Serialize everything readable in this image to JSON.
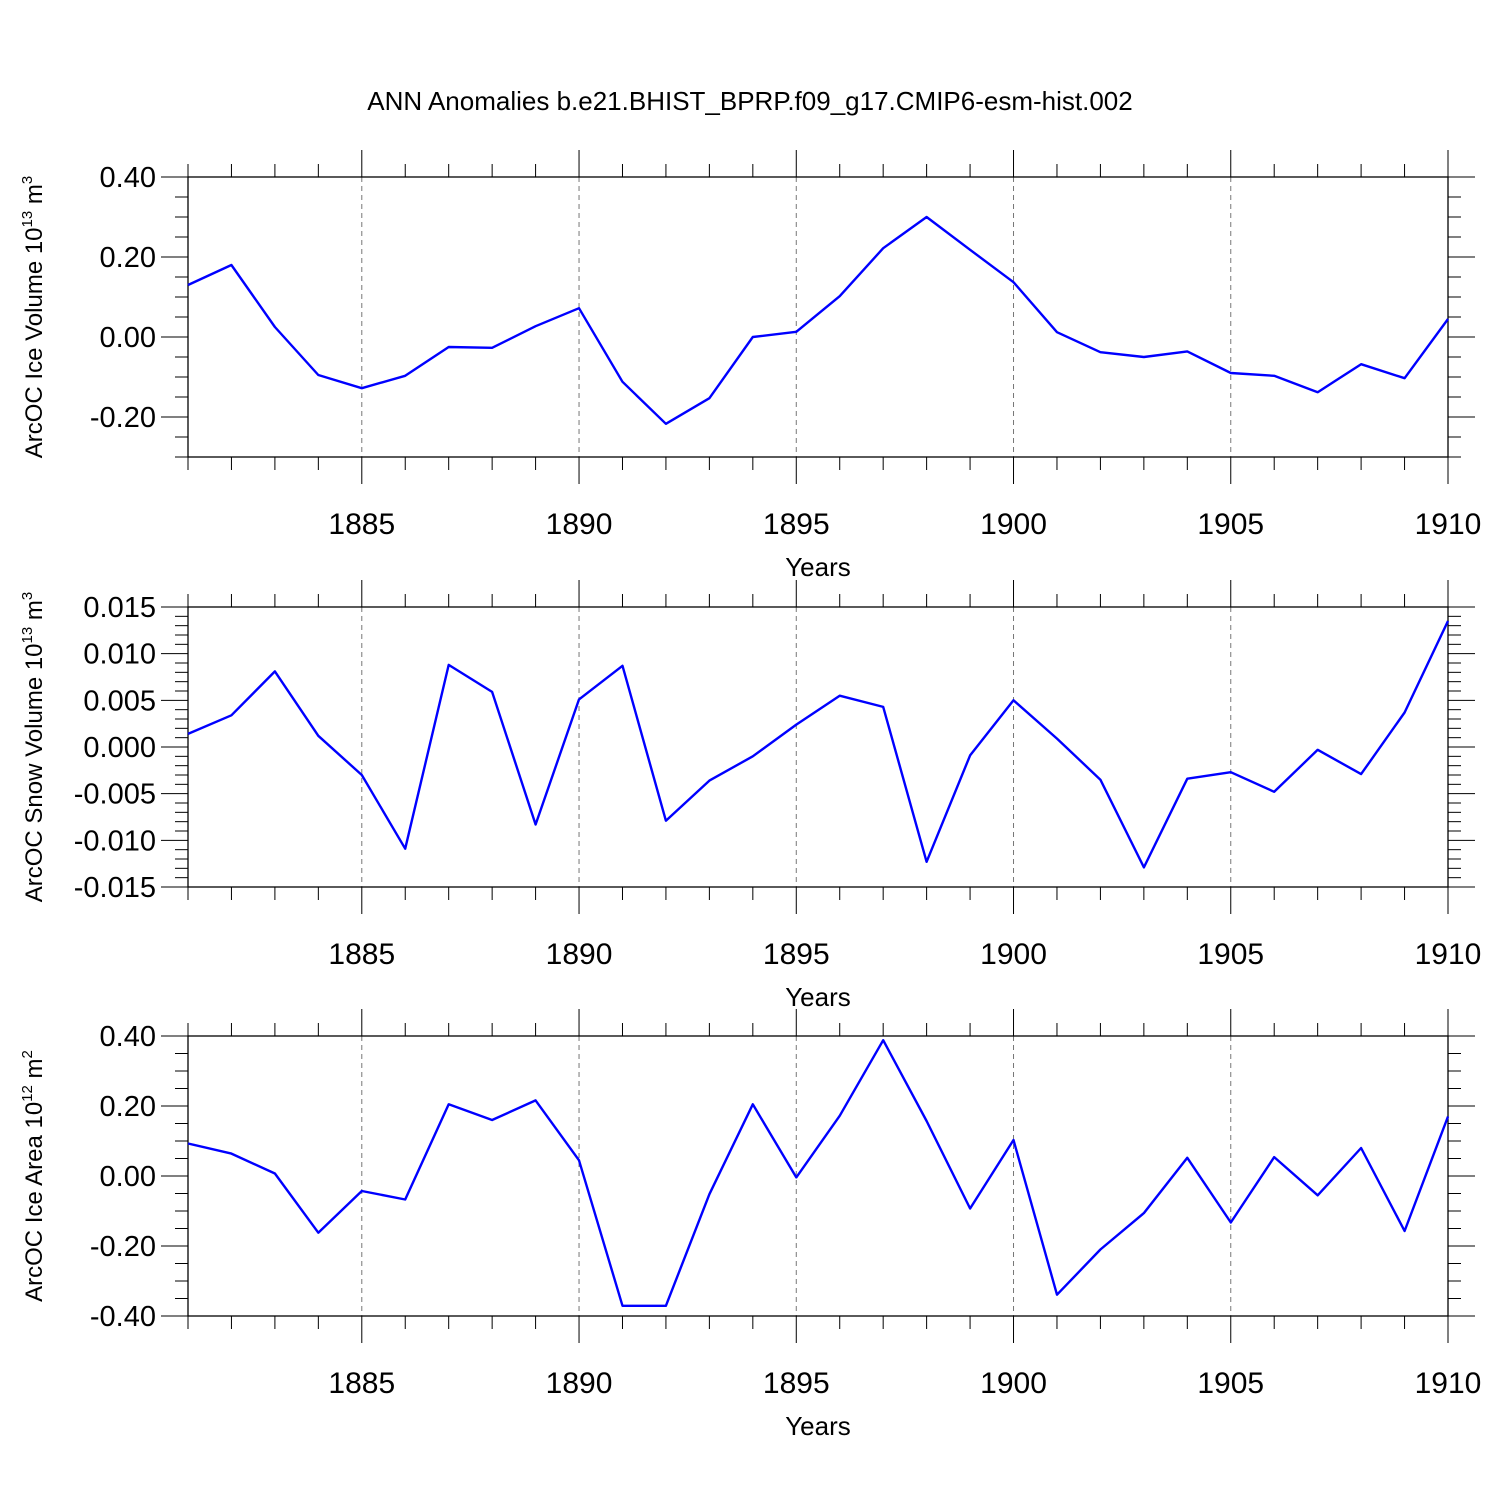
{
  "title": "ANN Anomalies b.e21.BHIST_BPRP.f09_g17.CMIP6-esm-hist.002",
  "chart_data": [
    {
      "type": "line",
      "ylabel_main": "ArcOC Ice Volume 10",
      "ylabel_exp": "13",
      "ylabel_unit": " m",
      "ylabel_unit_exp": "3",
      "xlabel": "Years",
      "x": [
        1881,
        1882,
        1883,
        1884,
        1885,
        1886,
        1887,
        1888,
        1889,
        1890,
        1891,
        1892,
        1893,
        1894,
        1895,
        1896,
        1897,
        1898,
        1899,
        1900,
        1901,
        1902,
        1903,
        1904,
        1905,
        1906,
        1907,
        1908,
        1909,
        1910
      ],
      "series": [
        {
          "name": "ArcOC Ice Volume",
          "color": "#0000ff",
          "values": [
            0.13,
            0.18,
            0.025,
            -0.095,
            -0.128,
            -0.097,
            -0.025,
            -0.027,
            0.027,
            0.072,
            -0.112,
            -0.217,
            -0.153,
            0.0,
            0.013,
            0.102,
            0.222,
            0.3,
            0.218,
            0.137,
            0.012,
            -0.038,
            -0.05,
            -0.036,
            -0.09,
            -0.097,
            -0.138,
            -0.068,
            -0.103,
            0.045
          ]
        }
      ],
      "xlim": [
        1881,
        1910
      ],
      "ylim": [
        -0.3,
        0.4
      ],
      "yticks": [
        -0.2,
        0.0,
        0.2,
        0.4
      ],
      "ytick_labels": [
        "-0.20",
        "0.00",
        "0.20",
        "0.40"
      ],
      "yminor": [
        -0.3,
        -0.25,
        -0.15,
        -0.1,
        -0.05,
        0.05,
        0.1,
        0.15,
        0.25,
        0.3,
        0.35
      ],
      "xticks": [
        1885,
        1890,
        1895,
        1900,
        1905,
        1910
      ],
      "xtick_labels": [
        "1885",
        "1890",
        "1895",
        "1900",
        "1905",
        "1910"
      ],
      "grid": "x-dashed"
    },
    {
      "type": "line",
      "ylabel_main": "ArcOC Snow Volume 10",
      "ylabel_exp": "13",
      "ylabel_unit": " m",
      "ylabel_unit_exp": "3",
      "xlabel": "Years",
      "x": [
        1881,
        1882,
        1883,
        1884,
        1885,
        1886,
        1887,
        1888,
        1889,
        1890,
        1891,
        1892,
        1893,
        1894,
        1895,
        1896,
        1897,
        1898,
        1899,
        1900,
        1901,
        1902,
        1903,
        1904,
        1905,
        1906,
        1907,
        1908,
        1909,
        1910
      ],
      "series": [
        {
          "name": "ArcOC Snow Volume",
          "color": "#0000ff",
          "values": [
            0.0014,
            0.0034,
            0.0081,
            0.0012,
            -0.003,
            -0.0109,
            0.0088,
            0.0059,
            -0.0083,
            0.0051,
            0.0087,
            -0.0079,
            -0.0036,
            -0.001,
            0.0024,
            0.0055,
            0.0043,
            -0.0123,
            -0.0009,
            0.005,
            0.0009,
            -0.0035,
            -0.0129,
            -0.0034,
            -0.0027,
            -0.0048,
            -0.0003,
            -0.0029,
            0.0037,
            0.0135
          ]
        }
      ],
      "xlim": [
        1881,
        1910
      ],
      "ylim": [
        -0.015,
        0.015
      ],
      "yticks": [
        -0.015,
        -0.01,
        -0.005,
        0.0,
        0.005,
        0.01,
        0.015
      ],
      "ytick_labels": [
        "-0.015",
        "-0.010",
        "-0.005",
        "0.000",
        "0.005",
        "0.010",
        "0.015"
      ],
      "yminor": [
        -0.014,
        -0.013,
        -0.012,
        -0.011,
        -0.009,
        -0.008,
        -0.007,
        -0.006,
        -0.004,
        -0.003,
        -0.002,
        -0.001,
        0.001,
        0.002,
        0.003,
        0.004,
        0.006,
        0.007,
        0.008,
        0.009,
        0.011,
        0.012,
        0.013,
        0.014
      ],
      "xticks": [
        1885,
        1890,
        1895,
        1900,
        1905,
        1910
      ],
      "xtick_labels": [
        "1885",
        "1890",
        "1895",
        "1900",
        "1905",
        "1910"
      ],
      "grid": "x-dashed"
    },
    {
      "type": "line",
      "ylabel_main": "ArcOC Ice Area 10",
      "ylabel_exp": "12",
      "ylabel_unit": " m",
      "ylabel_unit_exp": "2",
      "xlabel": "Years",
      "x": [
        1881,
        1882,
        1883,
        1884,
        1885,
        1886,
        1887,
        1888,
        1889,
        1890,
        1891,
        1892,
        1893,
        1894,
        1895,
        1896,
        1897,
        1898,
        1899,
        1900,
        1901,
        1902,
        1903,
        1904,
        1905,
        1906,
        1907,
        1908,
        1909,
        1910
      ],
      "series": [
        {
          "name": "ArcOC Ice Area",
          "color": "#0000ff",
          "values": [
            0.093,
            0.064,
            0.007,
            -0.162,
            -0.043,
            -0.067,
            0.205,
            0.16,
            0.216,
            0.045,
            -0.371,
            -0.371,
            -0.052,
            0.205,
            -0.004,
            0.172,
            0.388,
            0.157,
            -0.093,
            0.103,
            -0.339,
            -0.21,
            -0.106,
            0.052,
            -0.133,
            0.054,
            -0.055,
            0.08,
            -0.157,
            0.17
          ]
        }
      ],
      "xlim": [
        1881,
        1910
      ],
      "ylim": [
        -0.4,
        0.4
      ],
      "yticks": [
        -0.4,
        -0.2,
        0.0,
        0.2,
        0.4
      ],
      "ytick_labels": [
        "-0.40",
        "-0.20",
        "0.00",
        "0.20",
        "0.40"
      ],
      "yminor": [
        -0.35,
        -0.3,
        -0.25,
        -0.15,
        -0.1,
        -0.05,
        0.05,
        0.1,
        0.15,
        0.25,
        0.3,
        0.35
      ],
      "xticks": [
        1885,
        1890,
        1895,
        1900,
        1905,
        1910
      ],
      "xtick_labels": [
        "1885",
        "1890",
        "1895",
        "1900",
        "1905",
        "1910"
      ],
      "grid": "x-dashed"
    }
  ]
}
